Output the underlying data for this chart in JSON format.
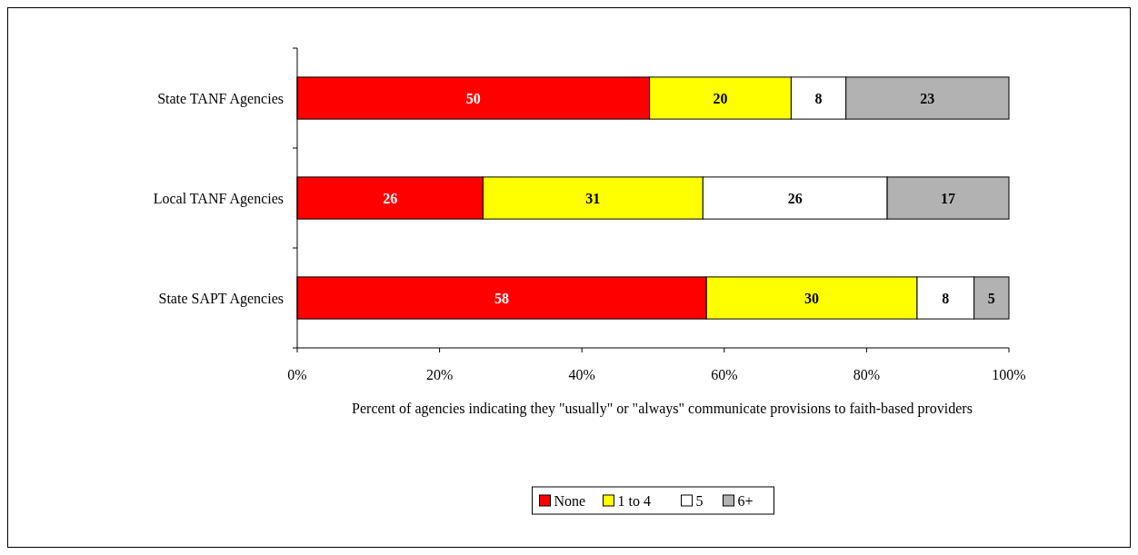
{
  "chart_data": {
    "type": "bar",
    "orientation": "horizontal",
    "stacked": true,
    "categories": [
      "State TANF Agencies",
      "Local TANF Agencies",
      "State SAPT Agencies"
    ],
    "xlabel": "Percent of agencies indicating they \"usually\" or \"always\" communicate provisions to faith-based providers",
    "xlim": [
      0,
      100
    ],
    "xticks": [
      {
        "value": 0,
        "label": "0%"
      },
      {
        "value": 20,
        "label": "20%"
      },
      {
        "value": 40,
        "label": "40%"
      },
      {
        "value": 60,
        "label": "60%"
      },
      {
        "value": 80,
        "label": "80%"
      },
      {
        "value": 100,
        "label": "100%"
      }
    ],
    "grid": false,
    "legend": "bottom",
    "series": [
      {
        "name": "None",
        "color": "#ff0000",
        "values": [
          49.5,
          26.1,
          57.5
        ],
        "value_labels": [
          "50",
          "26",
          "58"
        ]
      },
      {
        "name": "1 to 4",
        "color": "#ffff00",
        "values": [
          19.9,
          30.9,
          29.6
        ],
        "value_labels": [
          "20",
          "31",
          "30"
        ]
      },
      {
        "name": "5",
        "color": "#ffffff",
        "values": [
          7.7,
          25.9,
          8.0
        ],
        "value_labels": [
          "8",
          "26",
          "8"
        ]
      },
      {
        "name": "6+",
        "color": "#b2b2b2",
        "values": [
          22.9,
          17.1,
          4.9
        ],
        "value_labels": [
          "23",
          "17",
          "5"
        ]
      }
    ]
  }
}
